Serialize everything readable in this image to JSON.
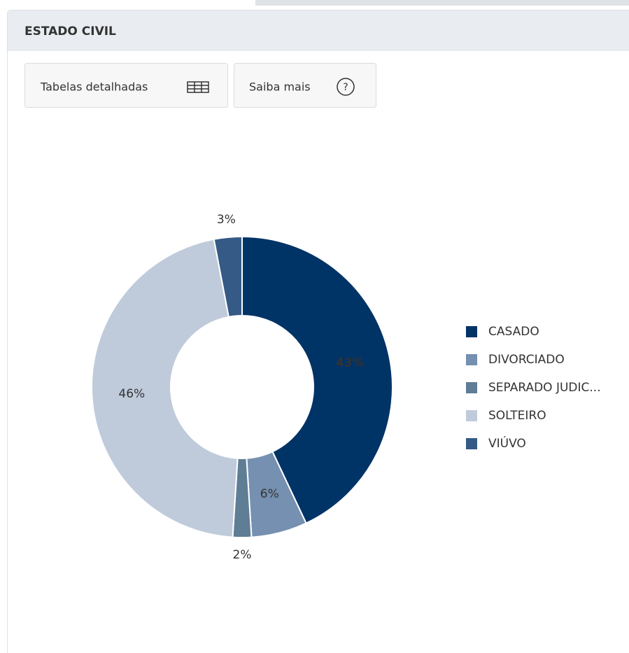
{
  "header": {
    "title": "ESTADO CIVIL"
  },
  "buttons": [
    "Tabelas detalhadas",
    "Saiba mais"
  ],
  "chart_data": {
    "type": "donut",
    "categories": [
      "CASADO",
      "DIVORCIADO",
      "SEPARADO JUDIC...",
      "SOLTEIRO",
      "VIÚVO"
    ],
    "values": [
      43,
      6,
      2,
      46,
      3
    ],
    "value_labels": [
      "43%",
      "6%",
      "2%",
      "46%",
      "3%"
    ],
    "colors": [
      "#003366",
      "#7590b0",
      "#5f7d95",
      "#bfcbdb",
      "#345a85"
    ],
    "legend": "right"
  }
}
